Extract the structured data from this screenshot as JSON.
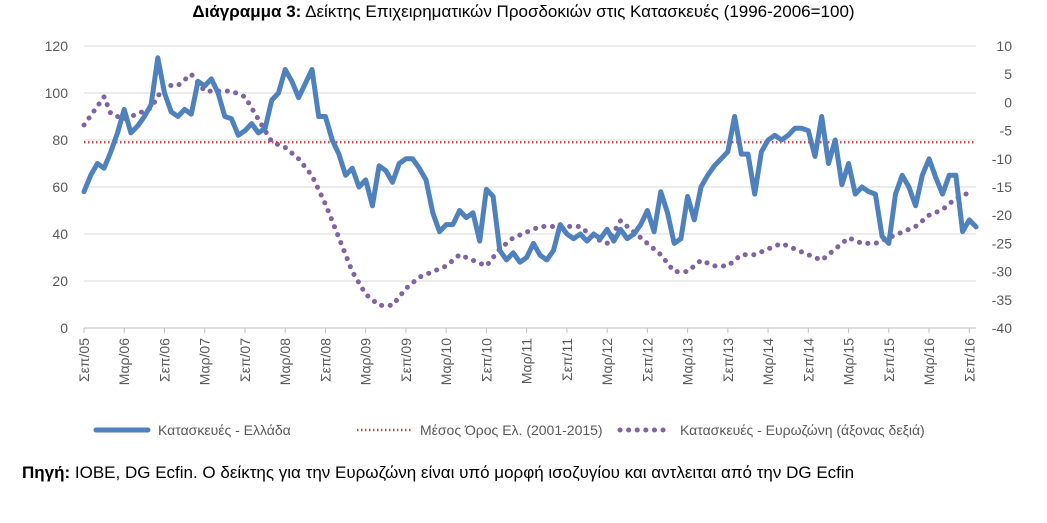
{
  "title": {
    "bold": "Διάγραμμα 3:",
    "text": " Δείκτης Επιχειρηματικών Προσδοκιών στις Κατασκευές (1996-2006=100)"
  },
  "source": {
    "label": "Πηγή:",
    "text": " IOBE, DG Ecfin. Ο δείκτης για την Ευρωζώνη είναι υπό μορφή ισοζυγίου και αντλειται από την DG Ecfin"
  },
  "colors": {
    "greece": "#4f81bd",
    "average": "#c0504d",
    "eurozone": "#8064a2",
    "grid": "#d9d9d9"
  },
  "chart_data": {
    "type": "line",
    "x_tick_labels": [
      "Σεπ/05",
      "Μαρ/06",
      "Σεπ/06",
      "Μαρ/07",
      "Σεπ/07",
      "Μαρ/08",
      "Σεπ/08",
      "Μαρ/09",
      "Σεπ/09",
      "Μαρ/10",
      "Σεπ/10",
      "Μαρ/11",
      "Σεπ/11",
      "Μαρ/12",
      "Σεπ/12",
      "Μαρ/13",
      "Σεπ/13",
      "Μαρ/14",
      "Σεπ/14",
      "Μαρ/15",
      "Σεπ/15",
      "Μαρ/16",
      "Σεπ/16"
    ],
    "y_left": {
      "min": 0,
      "max": 120,
      "ticks": [
        0,
        20,
        40,
        60,
        80,
        100,
        120
      ]
    },
    "y_right": {
      "min": -40,
      "max": 10,
      "ticks": [
        -40,
        -35,
        -30,
        -25,
        -20,
        -15,
        -10,
        -5,
        0,
        5,
        10
      ]
    },
    "legend_position": "bottom",
    "series": [
      {
        "name": "Κατασκευές  - Ελλάδα",
        "axis": "left",
        "style": "solid",
        "points": [
          [
            0,
            58
          ],
          [
            1,
            65
          ],
          [
            2,
            70
          ],
          [
            3,
            68
          ],
          [
            4,
            75
          ],
          [
            5,
            83
          ],
          [
            6,
            93
          ],
          [
            7,
            83
          ],
          [
            8,
            86
          ],
          [
            9,
            90
          ],
          [
            10,
            95
          ],
          [
            11,
            115
          ],
          [
            12,
            100
          ],
          [
            13,
            92
          ],
          [
            14,
            90
          ],
          [
            15,
            93
          ],
          [
            16,
            91
          ],
          [
            17,
            105
          ],
          [
            18,
            103
          ],
          [
            19,
            106
          ],
          [
            20,
            100
          ],
          [
            21,
            90
          ],
          [
            22,
            89
          ],
          [
            23,
            82
          ],
          [
            24,
            84
          ],
          [
            25,
            87
          ],
          [
            26,
            83
          ],
          [
            27,
            85
          ],
          [
            28,
            97
          ],
          [
            29,
            100
          ],
          [
            30,
            110
          ],
          [
            31,
            105
          ],
          [
            32,
            98
          ],
          [
            33,
            104
          ],
          [
            34,
            110
          ],
          [
            35,
            90
          ],
          [
            36,
            90
          ],
          [
            37,
            80
          ],
          [
            38,
            74
          ],
          [
            39,
            65
          ],
          [
            40,
            68
          ],
          [
            41,
            60
          ],
          [
            42,
            63
          ],
          [
            43,
            52
          ],
          [
            44,
            69
          ],
          [
            45,
            67
          ],
          [
            46,
            62
          ],
          [
            47,
            70
          ],
          [
            48,
            72
          ],
          [
            49,
            72
          ],
          [
            50,
            68
          ],
          [
            51,
            63
          ],
          [
            52,
            49
          ],
          [
            53,
            41
          ],
          [
            54,
            44
          ],
          [
            55,
            44
          ],
          [
            56,
            50
          ],
          [
            57,
            47
          ],
          [
            58,
            49
          ],
          [
            59,
            37
          ],
          [
            60,
            59
          ],
          [
            61,
            56
          ],
          [
            62,
            33
          ],
          [
            63,
            29
          ],
          [
            64,
            32
          ],
          [
            65,
            28
          ],
          [
            66,
            30
          ],
          [
            67,
            36
          ],
          [
            68,
            31
          ],
          [
            69,
            29
          ],
          [
            70,
            33
          ],
          [
            71,
            44
          ],
          [
            72,
            40
          ],
          [
            73,
            38
          ],
          [
            74,
            40
          ],
          [
            75,
            37
          ],
          [
            76,
            40
          ],
          [
            77,
            38
          ],
          [
            78,
            42
          ],
          [
            79,
            37
          ],
          [
            80,
            42
          ],
          [
            81,
            38
          ],
          [
            82,
            40
          ],
          [
            83,
            44
          ],
          [
            84,
            50
          ],
          [
            85,
            41
          ],
          [
            86,
            58
          ],
          [
            87,
            49
          ],
          [
            88,
            36
          ],
          [
            89,
            38
          ],
          [
            90,
            56
          ],
          [
            91,
            46
          ],
          [
            92,
            60
          ],
          [
            93,
            65
          ],
          [
            94,
            69
          ],
          [
            95,
            72
          ],
          [
            96,
            75
          ],
          [
            97,
            90
          ],
          [
            98,
            74
          ],
          [
            99,
            74
          ],
          [
            100,
            57
          ],
          [
            101,
            75
          ],
          [
            102,
            80
          ],
          [
            103,
            82
          ],
          [
            104,
            80
          ],
          [
            105,
            82
          ],
          [
            106,
            85
          ],
          [
            107,
            85
          ],
          [
            108,
            84
          ],
          [
            109,
            73
          ],
          [
            110,
            90
          ],
          [
            111,
            70
          ],
          [
            112,
            80
          ],
          [
            113,
            61
          ],
          [
            114,
            70
          ],
          [
            115,
            57
          ],
          [
            116,
            60
          ],
          [
            117,
            58
          ],
          [
            118,
            57
          ],
          [
            119,
            39
          ],
          [
            120,
            36
          ],
          [
            121,
            57
          ],
          [
            122,
            65
          ],
          [
            123,
            60
          ],
          [
            124,
            52
          ],
          [
            125,
            65
          ],
          [
            126,
            72
          ],
          [
            127,
            64
          ],
          [
            128,
            57
          ],
          [
            129,
            65
          ],
          [
            130,
            65
          ],
          [
            131,
            41
          ],
          [
            132,
            46
          ],
          [
            133,
            43
          ]
        ]
      },
      {
        "name": "Μέσος Όρος Ελ. (2001-2015)",
        "axis": "left",
        "style": "dotted",
        "points": [
          [
            0,
            79
          ],
          [
            133,
            79
          ]
        ]
      },
      {
        "name": "Κατασκευές - Ευρωζώνη (άξονας δεξιά)",
        "axis": "right",
        "style": "dotted-thick",
        "points": [
          [
            0,
            -4
          ],
          [
            3,
            1
          ],
          [
            4,
            -2
          ],
          [
            6,
            -3
          ],
          [
            8,
            -2
          ],
          [
            10,
            -1
          ],
          [
            12,
            3
          ],
          [
            14,
            3
          ],
          [
            16,
            5
          ],
          [
            18,
            2
          ],
          [
            20,
            2
          ],
          [
            22,
            2
          ],
          [
            24,
            1
          ],
          [
            26,
            -3
          ],
          [
            28,
            -7
          ],
          [
            30,
            -8
          ],
          [
            32,
            -10
          ],
          [
            34,
            -13
          ],
          [
            36,
            -18
          ],
          [
            38,
            -24
          ],
          [
            40,
            -30
          ],
          [
            42,
            -34
          ],
          [
            44,
            -36
          ],
          [
            46,
            -36
          ],
          [
            48,
            -33
          ],
          [
            50,
            -31
          ],
          [
            52,
            -30
          ],
          [
            54,
            -29
          ],
          [
            56,
            -27
          ],
          [
            58,
            -28
          ],
          [
            60,
            -29
          ],
          [
            62,
            -26
          ],
          [
            64,
            -24
          ],
          [
            66,
            -23
          ],
          [
            68,
            -22
          ],
          [
            70,
            -22
          ],
          [
            72,
            -22
          ],
          [
            74,
            -22
          ],
          [
            76,
            -24
          ],
          [
            78,
            -25
          ],
          [
            80,
            -21
          ],
          [
            82,
            -23
          ],
          [
            84,
            -25
          ],
          [
            86,
            -27
          ],
          [
            88,
            -30
          ],
          [
            90,
            -30
          ],
          [
            92,
            -28
          ],
          [
            94,
            -29
          ],
          [
            96,
            -29
          ],
          [
            98,
            -27
          ],
          [
            100,
            -27
          ],
          [
            102,
            -26
          ],
          [
            104,
            -25
          ],
          [
            106,
            -26
          ],
          [
            108,
            -27
          ],
          [
            110,
            -28
          ],
          [
            112,
            -26
          ],
          [
            114,
            -24
          ],
          [
            116,
            -25
          ],
          [
            118,
            -25
          ],
          [
            120,
            -24
          ],
          [
            122,
            -23
          ],
          [
            124,
            -22
          ],
          [
            126,
            -20
          ],
          [
            128,
            -19
          ],
          [
            130,
            -17
          ],
          [
            132,
            -16
          ]
        ]
      }
    ]
  }
}
